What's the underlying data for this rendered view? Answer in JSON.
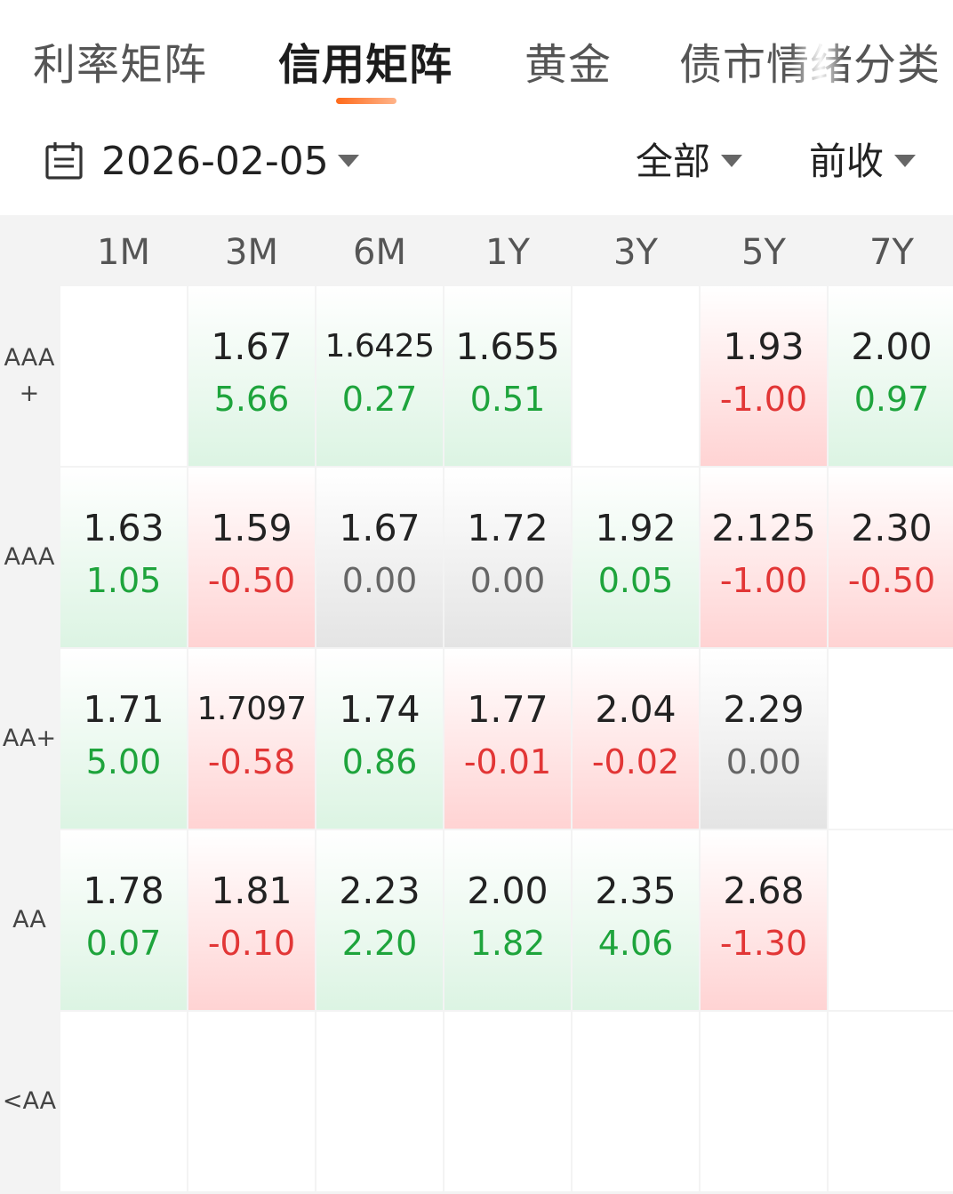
{
  "tabs": [
    {
      "label": "利率矩阵",
      "active": false
    },
    {
      "label": "信用矩阵",
      "active": true
    },
    {
      "label": "黄金",
      "active": false
    },
    {
      "label": "债市情绪分类",
      "active": false
    }
  ],
  "filters": {
    "date": "2026-02-05",
    "scope": "全部",
    "price_basis": "前收"
  },
  "matrix": {
    "columns": [
      "1M",
      "3M",
      "6M",
      "1Y",
      "3Y",
      "5Y",
      "7Y"
    ],
    "rows": [
      {
        "label_lines": [
          "AAA",
          "+"
        ],
        "cells": [
          null,
          {
            "yield": "1.67",
            "change": "5.66",
            "trend": "up"
          },
          {
            "yield": "1.6425",
            "change": "0.27",
            "trend": "up"
          },
          {
            "yield": "1.655",
            "change": "0.51",
            "trend": "up"
          },
          null,
          {
            "yield": "1.93",
            "change": "-1.00",
            "trend": "down"
          },
          {
            "yield": "2.00",
            "change": "0.97",
            "trend": "up"
          }
        ]
      },
      {
        "label_lines": [
          "AAA"
        ],
        "cells": [
          {
            "yield": "1.63",
            "change": "1.05",
            "trend": "up"
          },
          {
            "yield": "1.59",
            "change": "-0.50",
            "trend": "down"
          },
          {
            "yield": "1.67",
            "change": "0.00",
            "trend": "flat"
          },
          {
            "yield": "1.72",
            "change": "0.00",
            "trend": "flat"
          },
          {
            "yield": "1.92",
            "change": "0.05",
            "trend": "up"
          },
          {
            "yield": "2.125",
            "change": "-1.00",
            "trend": "down"
          },
          {
            "yield": "2.30",
            "change": "-0.50",
            "trend": "down"
          }
        ]
      },
      {
        "label_lines": [
          "AA+"
        ],
        "cells": [
          {
            "yield": "1.71",
            "change": "5.00",
            "trend": "up"
          },
          {
            "yield": "1.7097",
            "change": "-0.58",
            "trend": "down"
          },
          {
            "yield": "1.74",
            "change": "0.86",
            "trend": "up"
          },
          {
            "yield": "1.77",
            "change": "-0.01",
            "trend": "down"
          },
          {
            "yield": "2.04",
            "change": "-0.02",
            "trend": "down"
          },
          {
            "yield": "2.29",
            "change": "0.00",
            "trend": "flat"
          },
          null
        ]
      },
      {
        "label_lines": [
          "AA"
        ],
        "cells": [
          {
            "yield": "1.78",
            "change": "0.07",
            "trend": "up"
          },
          {
            "yield": "1.81",
            "change": "-0.10",
            "trend": "down"
          },
          {
            "yield": "2.23",
            "change": "2.20",
            "trend": "up"
          },
          {
            "yield": "2.00",
            "change": "1.82",
            "trend": "up"
          },
          {
            "yield": "2.35",
            "change": "4.06",
            "trend": "up"
          },
          {
            "yield": "2.68",
            "change": "-1.30",
            "trend": "down"
          },
          null
        ]
      },
      {
        "label_lines": [
          "<AA"
        ],
        "cells": [
          null,
          null,
          null,
          null,
          null,
          null,
          null
        ]
      }
    ]
  },
  "icons": {
    "calendar": "calendar-icon",
    "dropdown": "caret-down-icon"
  },
  "colors": {
    "accent": "#ff6a1a",
    "up": "#1ea43c",
    "down": "#e23636",
    "flat": "#666666"
  }
}
